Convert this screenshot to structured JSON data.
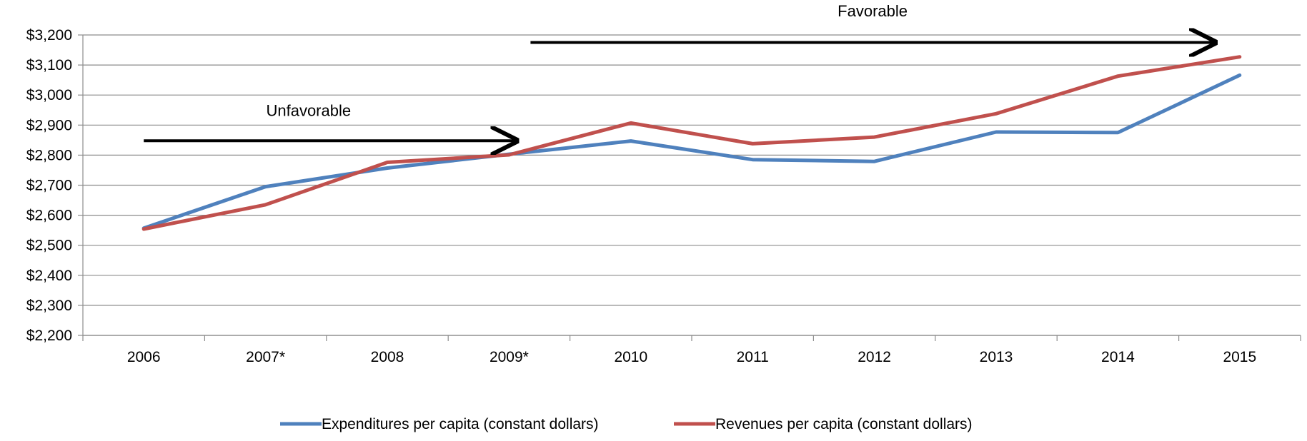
{
  "chart_data": {
    "type": "line",
    "categories": [
      "2006",
      "2007*",
      "2008",
      "2009*",
      "2010",
      "2011",
      "2012",
      "2013",
      "2014",
      "2015"
    ],
    "series": [
      {
        "name": "Expenditures per capita (constant dollars)",
        "color": "#4f81bd",
        "values": [
          2557,
          2695,
          2757,
          2803,
          2847,
          2785,
          2779,
          2877,
          2875,
          3066
        ]
      },
      {
        "name": "Revenues per capita (constant dollars)",
        "color": "#c0504d",
        "values": [
          2554,
          2635,
          2776,
          2801,
          2907,
          2838,
          2860,
          2938,
          3063,
          3127
        ]
      }
    ],
    "ylim": [
      2200,
      3200
    ],
    "ytick_step": 100,
    "ytick_labels": [
      "$2,200",
      "$2,300",
      "$2,400",
      "$2,500",
      "$2,600",
      "$2,700",
      "$2,800",
      "$2,900",
      "$3,000",
      "$3,100",
      "$3,200"
    ],
    "grid": true,
    "legend_position": "bottom",
    "annotations": [
      {
        "text": "Unfavorable",
        "from_category": 0,
        "to_category": 3,
        "y": 2848,
        "label_y": 2930
      },
      {
        "text": "Favorable",
        "from_category": 3,
        "to_category": 9,
        "y": 3175,
        "label_y": 3262
      }
    ]
  }
}
